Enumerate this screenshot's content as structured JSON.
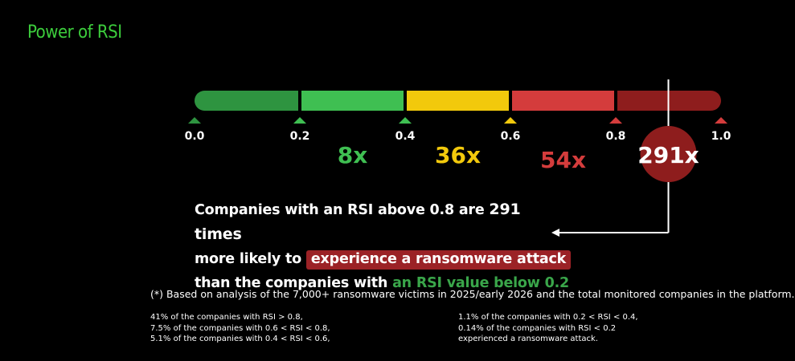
{
  "title": "Power of RSI",
  "chart_data": {
    "type": "scale",
    "segments": [
      {
        "from": 0.0,
        "to": 0.2,
        "color": "#2e9440"
      },
      {
        "from": 0.2,
        "to": 0.4,
        "color": "#3fbf52"
      },
      {
        "from": 0.4,
        "to": 0.6,
        "color": "#f2c90c"
      },
      {
        "from": 0.6,
        "to": 0.8,
        "color": "#d43c3c"
      },
      {
        "from": 0.8,
        "to": 1.0,
        "color": "#8e1d1d"
      }
    ],
    "ticks": [
      {
        "value": 0.0,
        "label": "0.0",
        "color": "#2e9440"
      },
      {
        "value": 0.2,
        "label": "0.2",
        "color": "#3fbf52"
      },
      {
        "value": 0.4,
        "label": "0.4",
        "color": "#3fbf52"
      },
      {
        "value": 0.6,
        "label": "0.6",
        "color": "#f2c90c"
      },
      {
        "value": 0.8,
        "label": "0.8",
        "color": "#d43c3c"
      },
      {
        "value": 1.0,
        "label": "1.0",
        "color": "#d43c3c"
      }
    ],
    "multipliers": [
      {
        "range": [
          0.2,
          0.4
        ],
        "label": "8x",
        "color": "#3fbf52"
      },
      {
        "range": [
          0.4,
          0.6
        ],
        "label": "36x",
        "color": "#f2c90c"
      },
      {
        "range": [
          0.6,
          0.8
        ],
        "label": "54x",
        "color": "#d43c3c"
      },
      {
        "range": [
          0.8,
          1.0
        ],
        "label": "291x",
        "color": "#ffffff",
        "badge": "#8e1d1d"
      }
    ]
  },
  "statement": {
    "p1": "Companies with an RSI above 0.8 are ",
    "p2": "291 times",
    "p3": "more likely to ",
    "p4": "experience a ransomware attack",
    "p5": "than the companies with ",
    "p6": "an RSI value below 0.2"
  },
  "footnote": "(*) Based on analysis of the 7,000+ ransomware victims in 2025/early 2026 and the total monitored companies in the platform.",
  "stats_left": [
    "41% of the companies with RSI > 0.8,",
    "7.5% of the companies with 0.6 < RSI < 0.8,",
    "5.1% of the companies with 0.4 < RSI < 0.6,"
  ],
  "stats_right": [
    "1.1% of the companies with 0.2 < RSI < 0.4,",
    "0.14% of the companies with RSI < 0.2",
    "experienced a ransomware attack."
  ]
}
